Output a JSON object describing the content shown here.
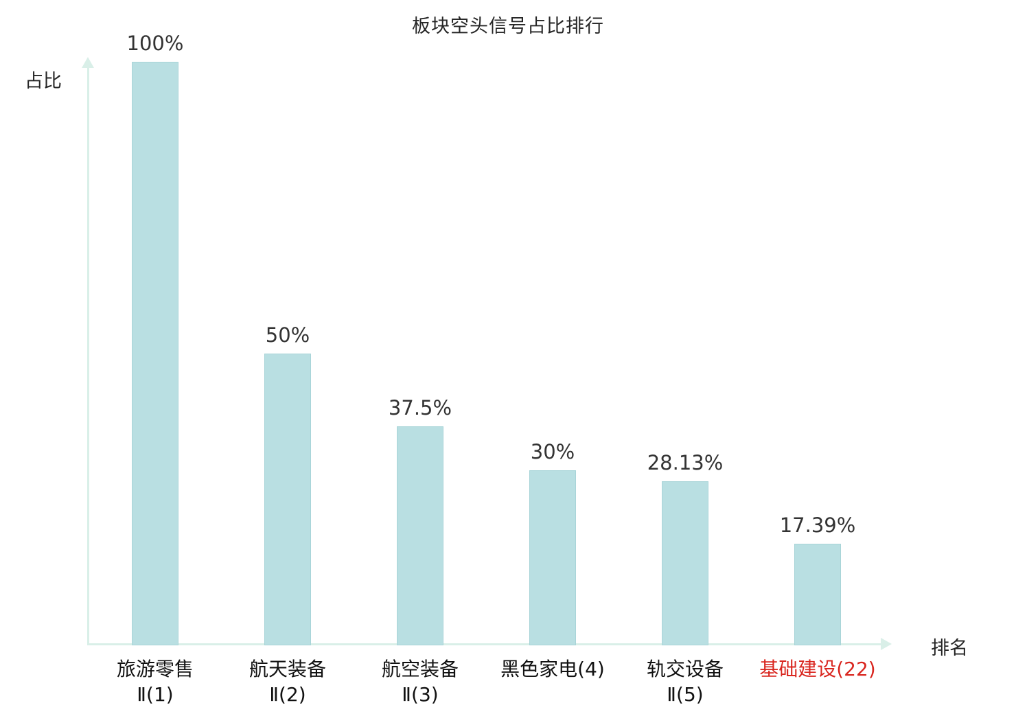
{
  "title": "板块空头信号占比排行",
  "colors": {
    "bar_fill": "#b9dfe2",
    "bar_border": "#a8d4d8",
    "axis": "#d9efe8",
    "text": "#262626",
    "highlight": "#d9261f"
  },
  "chart_data": {
    "type": "bar",
    "title": "板块空头信号占比排行",
    "xlabel": "排名",
    "ylabel": "占比",
    "categories": [
      "旅游零售Ⅱ(1)",
      "航天装备Ⅱ(2)",
      "航空装备Ⅱ(3)",
      "黑色家电(4)",
      "轨交设备Ⅱ(5)",
      "基础建设(22)"
    ],
    "values": [
      100,
      50,
      37.5,
      30,
      28.13,
      17.39
    ],
    "value_labels": [
      "100%",
      "50%",
      "37.5%",
      "30%",
      "28.13%",
      "17.39%"
    ],
    "ylim": [
      0,
      100
    ],
    "grid": false,
    "legend": false,
    "bars": [
      {
        "name_line1": "旅游零售",
        "name_line2": "Ⅱ(1)",
        "value": 100,
        "value_label": "100%",
        "highlighted": false
      },
      {
        "name_line1": "航天装备",
        "name_line2": "Ⅱ(2)",
        "value": 50,
        "value_label": "50%",
        "highlighted": false
      },
      {
        "name_line1": "航空装备",
        "name_line2": "Ⅱ(3)",
        "value": 37.5,
        "value_label": "37.5%",
        "highlighted": false
      },
      {
        "name_line1": "黑色家电(4)",
        "name_line2": "",
        "value": 30,
        "value_label": "30%",
        "highlighted": false
      },
      {
        "name_line1": "轨交设备",
        "name_line2": "Ⅱ(5)",
        "value": 28.13,
        "value_label": "28.13%",
        "highlighted": false
      },
      {
        "name_line1": "基础建设(22)",
        "name_line2": "",
        "value": 17.39,
        "value_label": "17.39%",
        "highlighted": true
      }
    ]
  }
}
